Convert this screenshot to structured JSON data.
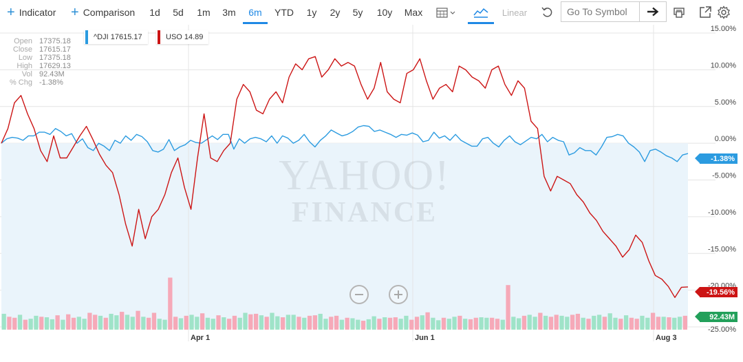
{
  "toolbar": {
    "indicator_label": "Indicator",
    "comparison_label": "Comparison",
    "ranges": [
      "1d",
      "5d",
      "1m",
      "3m",
      "6m",
      "YTD",
      "1y",
      "2y",
      "5y",
      "10y",
      "Max"
    ],
    "active_range": "6m",
    "scale_label": "Linear",
    "search": {
      "placeholder": "Go To Symbol",
      "value": ""
    },
    "icons": [
      "calendar-icon",
      "chevron-down-icon",
      "mountain-chart-icon",
      "undo-icon",
      "arrow-right-icon",
      "print-icon",
      "expand-icon",
      "gear-icon"
    ]
  },
  "ohlc": [
    {
      "k": "Open",
      "v": "17375.18"
    },
    {
      "k": "Close",
      "v": "17615.17"
    },
    {
      "k": "Low",
      "v": "17375.18"
    },
    {
      "k": "High",
      "v": "17629.13"
    },
    {
      "k": "Vol",
      "v": "92.43M"
    },
    {
      "k": "% Chg",
      "v": "-1.38%"
    }
  ],
  "legend": {
    "dji": "^DJI 17615.17",
    "uso": "USO 14.89"
  },
  "tags": {
    "dji_change": "-1.38%",
    "uso_change": "-19.56%",
    "volume": "92.43M"
  },
  "watermark": {
    "line1": "YAHOO!",
    "line2": "FINANCE"
  },
  "colors": {
    "dji": "#2b9be0",
    "uso": "#cc1414",
    "vol_up": "#9fe3c8",
    "vol_down": "#f6a9b8",
    "area": "#eaf4fb",
    "volume_tag": "#22a05a"
  },
  "chart_data": {
    "type": "line",
    "x_ticks": [
      "Apr 1",
      "Jun 1",
      "Aug 3"
    ],
    "y_ticks": [
      "15.00%",
      "10.00%",
      "5.00%",
      "0.00%",
      "-5.00%",
      "-10.00%",
      "-15.00%",
      "-20.00%",
      "-25.00%"
    ],
    "ylim": [
      -25,
      15
    ],
    "unit": "%",
    "series": [
      {
        "name": "^DJI",
        "values": [
          0,
          0.6,
          0.8,
          0.7,
          0.4,
          1.0,
          1.0,
          1.5,
          1.5,
          1.2,
          2.0,
          1.6,
          1.0,
          1.3,
          0.0,
          0.6,
          -0.6,
          -1.0,
          0.0,
          -0.4,
          -1.0,
          0.4,
          0.0,
          1.0,
          0.4,
          1.2,
          0.9,
          0.2,
          -1.0,
          -1.2,
          -0.8,
          0.5,
          -1.0,
          -0.5,
          -0.2,
          0.4,
          0.1,
          0.0,
          0.5,
          1.0,
          0.5,
          1.2,
          1.2,
          -0.8,
          0.6,
          0.0,
          0.6,
          0.8,
          0.6,
          0.2,
          1.0,
          0.0,
          1.0,
          0.7,
          0.0,
          0.4,
          1.2,
          0.2,
          -0.5,
          0.4,
          1.0,
          1.8,
          1.4,
          1.0,
          1.2,
          1.6,
          2.2,
          2.4,
          2.3,
          1.6,
          1.8,
          1.5,
          1.2,
          0.8,
          1.2,
          1.1,
          1.4,
          1.1,
          0.2,
          0.4,
          1.5,
          0.7,
          1.0,
          0.4,
          1.2,
          0.4,
          0.0,
          -0.4,
          -0.4,
          0.6,
          0.8,
          0.0,
          -0.5,
          0.4,
          1.0,
          0.2,
          -0.2,
          0.3,
          0.8,
          0.6,
          1.2,
          0.2,
          0.8,
          0.4,
          0.2,
          -1.6,
          -1.3,
          -0.6,
          -1.0,
          -1.0,
          -1.6,
          -0.5,
          0.8,
          0.9,
          1.2,
          1.0,
          0.0,
          -0.5,
          -1.2,
          -2.5,
          -1.0,
          -0.8,
          -1.2,
          -1.7,
          -2.0,
          -2.5,
          -1.6,
          -1.4
        ]
      },
      {
        "name": "USO",
        "values": [
          0,
          2.0,
          5.5,
          6.5,
          4.0,
          2.0,
          -1.0,
          -2.5,
          1.0,
          -2.0,
          -2.0,
          -0.5,
          1.0,
          2.3,
          0.5,
          -1.5,
          -3.0,
          -4.0,
          -7.0,
          -11.0,
          -14.0,
          -9.0,
          -13.0,
          -10.0,
          -9.0,
          -7.0,
          -4.0,
          -2.0,
          -6.0,
          -9.0,
          -2.0,
          4.0,
          -2.0,
          -2.5,
          -1.0,
          0.0,
          6.0,
          8.0,
          7.0,
          4.5,
          4.0,
          6.0,
          7.0,
          5.5,
          9.0,
          10.8,
          10.0,
          11.5,
          11.8,
          9.0,
          10.0,
          11.5,
          10.5,
          11.0,
          10.5,
          8.0,
          6.0,
          7.5,
          11.0,
          7.0,
          6.0,
          5.5,
          9.5,
          10.0,
          11.5,
          8.5,
          6.0,
          7.5,
          8.0,
          7.0,
          10.5,
          10.0,
          9.0,
          8.5,
          7.5,
          10.0,
          10.5,
          8.0,
          6.5,
          8.5,
          7.5,
          3.0,
          2.0,
          -4.5,
          -6.5,
          -4.5,
          -5.0,
          -5.5,
          -7.0,
          -8.0,
          -9.5,
          -10.5,
          -12.0,
          -13.0,
          -14.0,
          -15.5,
          -14.5,
          -12.5,
          -13.5,
          -16.0,
          -18.0,
          -18.5,
          -19.5,
          -21.0,
          -19.6,
          -19.56
        ]
      },
      {
        "name": "Volume",
        "values": [
          3.2,
          2.6,
          2.4,
          3.0,
          2.0,
          2.2,
          2.8,
          2.6,
          2.5,
          2.1,
          2.9,
          2.0,
          3.1,
          2.4,
          2.6,
          2.2,
          3.4,
          3.0,
          2.8,
          2.4,
          3.2,
          2.9,
          3.6,
          3.0,
          2.6,
          3.8,
          2.6,
          2.4,
          3.4,
          2.2,
          2.0,
          10.5,
          2.6,
          2.3,
          2.8,
          3.0,
          2.6,
          3.3,
          2.4,
          2.2,
          2.9,
          2.5,
          2.2,
          2.8,
          2.4,
          3.4,
          3.1,
          3.2,
          2.9,
          2.6,
          3.4,
          2.7,
          2.5,
          3.0,
          3.0,
          2.6,
          2.4,
          2.8,
          2.9,
          3.2,
          2.2,
          2.6,
          2.8,
          2.0,
          2.4,
          2.3,
          2.0,
          1.8,
          2.1,
          2.7,
          2.2,
          2.5,
          2.4,
          2.5,
          2.2,
          2.8,
          2.0,
          2.6,
          2.9,
          3.5,
          2.4,
          1.9,
          2.4,
          2.2,
          2.6,
          2.8,
          2.2,
          2.1,
          2.4,
          2.5,
          2.4,
          2.4,
          2.2,
          2.0,
          9.0,
          2.6,
          2.3,
          2.8,
          3.0,
          2.6,
          3.4,
          2.8,
          2.6,
          3.0,
          2.8,
          2.6,
          3.0,
          3.2,
          2.4,
          2.2,
          2.8,
          3.0,
          2.6,
          3.3,
          2.4,
          2.2,
          2.9,
          2.4,
          2.2,
          2.8,
          2.4,
          3.4,
          2.6,
          2.6,
          2.5,
          2.4,
          2.6,
          2.8
        ]
      }
    ]
  }
}
